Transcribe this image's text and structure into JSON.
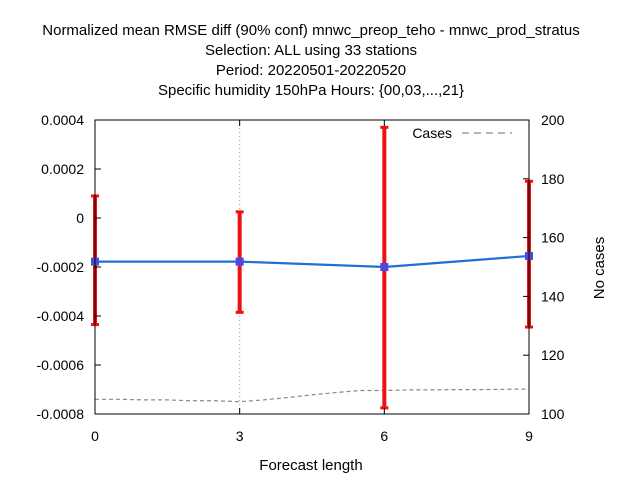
{
  "chart_data": {
    "type": "line",
    "title_lines": [
      "Normalized mean RMSE diff (90% conf) mnwc_preop_teho - mnwc_prod_stratus",
      "Selection: ALL using    33 stations",
      "Period: 20220501-20220520",
      "Specific humidity 150hPa   Hours: {00,03,...,21}"
    ],
    "xlabel": "Forecast length",
    "y2label": "No cases",
    "x_ticks": [
      "0",
      "3",
      "6",
      "9"
    ],
    "y_ticks": [
      "0.0004",
      "0.0002",
      "0",
      "-0.0002",
      "-0.0004",
      "-0.0006",
      "-0.0008"
    ],
    "y2_ticks": [
      "200",
      "180",
      "160",
      "140",
      "120",
      "100"
    ],
    "xlim": [
      0,
      9
    ],
    "ylim": [
      -0.0008,
      0.0004
    ],
    "y2lim": [
      100,
      200
    ],
    "grid": "vertical dotted at x ticks",
    "legend": {
      "label": "Cases",
      "position": "top-right"
    },
    "series": [
      {
        "role": "mean",
        "color": "#1f6fd6",
        "x": [
          0,
          3,
          6,
          9
        ],
        "y": [
          -0.000178,
          -0.000178,
          -0.0002,
          -0.000155
        ]
      },
      {
        "role": "error-bars",
        "color": "#ee1111",
        "x": [
          0,
          3,
          6,
          9
        ],
        "low": [
          -0.000435,
          -0.000385,
          -0.000775,
          -0.000445
        ],
        "high": [
          9e-05,
          2.5e-05,
          0.00037,
          0.00015
        ]
      },
      {
        "name": "Cases",
        "axis": "y2",
        "color": "#888888",
        "style": "dashed",
        "x": [
          0,
          0.5,
          1,
          1.5,
          2,
          2.5,
          3,
          3.5,
          4,
          4.5,
          5,
          5.5,
          6,
          6.5,
          7,
          7.5,
          8,
          8.5,
          9
        ],
        "y": [
          105,
          105,
          104.8,
          104.8,
          104.5,
          104.5,
          104.2,
          104.8,
          105.6,
          106.5,
          107.3,
          108,
          108,
          108.2,
          108.2,
          108.3,
          108.3,
          108.4,
          108.5
        ]
      }
    ]
  }
}
